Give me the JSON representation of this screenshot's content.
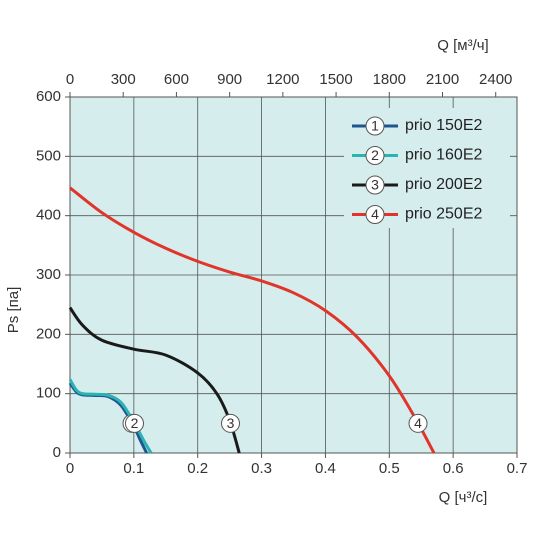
{
  "chart_data": {
    "type": "line",
    "xlabel": "Q [ч³/с]",
    "ylabel": "Ps [па]",
    "x2label": "Q [м³/ч]",
    "xlim": [
      0,
      0.7
    ],
    "xticks": [
      0,
      0.1,
      0.2,
      0.3,
      0.4,
      0.5,
      0.6,
      0.7
    ],
    "x2lim": [
      0,
      2520
    ],
    "x2ticks": [
      0,
      300,
      600,
      900,
      1200,
      1500,
      1800,
      2100,
      2400
    ],
    "ylim": [
      0,
      600
    ],
    "yticks": [
      0,
      100,
      200,
      300,
      400,
      500,
      600
    ],
    "grid": true,
    "legend": "upper right",
    "series": [
      {
        "name": "prio 150E2",
        "label": "1",
        "color": "#1f5591",
        "x": [
          0,
          0.01,
          0.02,
          0.04,
          0.06,
          0.08,
          0.1,
          0.11,
          0.12
        ],
        "values": [
          118,
          103,
          98,
          97,
          95,
          80,
          45,
          22,
          0
        ]
      },
      {
        "name": "prio 160E2",
        "label": "2",
        "color": "#2ab3b1",
        "x": [
          0,
          0.01,
          0.02,
          0.04,
          0.06,
          0.08,
          0.1,
          0.115,
          0.127
        ],
        "values": [
          124,
          106,
          100,
          99,
          97,
          85,
          52,
          22,
          0
        ]
      },
      {
        "name": "prio 200E2",
        "label": "3",
        "color": "#1a1a1a",
        "x": [
          0,
          0.02,
          0.05,
          0.1,
          0.15,
          0.2,
          0.23,
          0.25,
          0.265
        ],
        "values": [
          245,
          215,
          190,
          175,
          165,
          135,
          100,
          55,
          0
        ]
      },
      {
        "name": "prio 250E2",
        "label": "4",
        "color": "#e0352b",
        "x": [
          0,
          0.05,
          0.1,
          0.15,
          0.2,
          0.25,
          0.3,
          0.35,
          0.4,
          0.45,
          0.5,
          0.54,
          0.57
        ],
        "values": [
          447,
          405,
          372,
          345,
          323,
          305,
          290,
          270,
          240,
          195,
          130,
          60,
          0
        ]
      }
    ]
  }
}
